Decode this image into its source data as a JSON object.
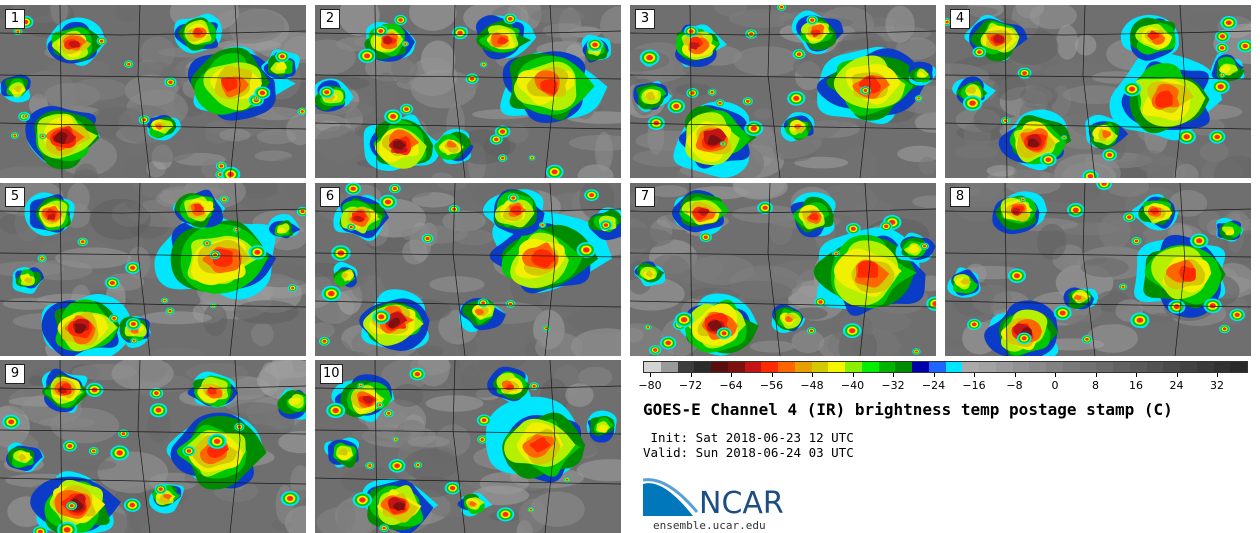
{
  "panels": [
    {
      "label": "1",
      "seed": 11
    },
    {
      "label": "2",
      "seed": 23
    },
    {
      "label": "3",
      "seed": 37
    },
    {
      "label": "4",
      "seed": 41
    },
    {
      "label": "5",
      "seed": 53
    },
    {
      "label": "6",
      "seed": 67
    },
    {
      "label": "7",
      "seed": 71
    },
    {
      "label": "8",
      "seed": 83
    },
    {
      "label": "9",
      "seed": 97
    },
    {
      "label": "10",
      "seed": 101
    }
  ],
  "colorbar": {
    "colors": [
      "#d4d4d4",
      "#9a9a9a",
      "#3c3c3c",
      "#2b2b2b",
      "#5a0f0f",
      "#7e1010",
      "#c31515",
      "#ff2a00",
      "#ff6600",
      "#e6a000",
      "#d4c800",
      "#f5f500",
      "#88f000",
      "#00f000",
      "#00b400",
      "#008c00",
      "#0000aa",
      "#1e64ff",
      "#00e6ff",
      "#aaaaaa",
      "#a3a3a3",
      "#9a9a9a",
      "#929292",
      "#8a8a8a",
      "#828282",
      "#7a7a7a",
      "#727272",
      "#6a6a6a",
      "#626262",
      "#5a5a5a",
      "#525252",
      "#4a4a4a",
      "#424242",
      "#3a3a3a",
      "#323232",
      "#2a2a2a"
    ],
    "ticks": [
      "−80",
      "−72",
      "−64",
      "−56",
      "−48",
      "−40",
      "−32",
      "−24",
      "−16",
      "−8",
      "0",
      "8",
      "16",
      "24",
      "32"
    ]
  },
  "title": "GOES-E Channel 4 (IR) brightness temp postage stamp (C)",
  "init_text": " Init: Sat 2018-06-23 12 UTC",
  "valid_text": "Valid: Sun 2018-06-24 03 UTC",
  "logo_text": "NCAR",
  "logo_url": "ensemble.ucar.edu",
  "colors": {
    "background_gray": "#6f6f6f",
    "logo_blue": "#1c4e82"
  }
}
